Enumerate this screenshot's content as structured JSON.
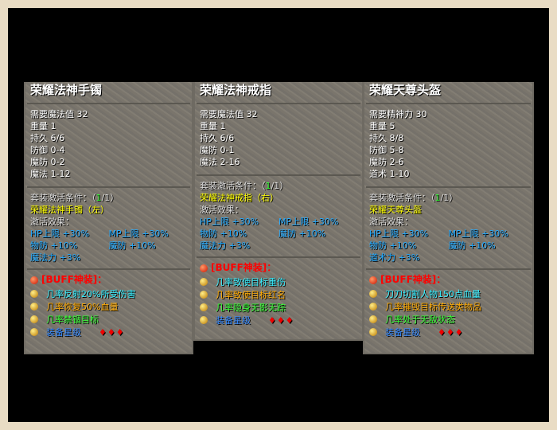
{
  "colors": {
    "title": "#ffffff",
    "set_name": "#ffff00",
    "effects": "#22aaff",
    "buff_header": "#ff0000",
    "buff1": "#33eeff",
    "buff2": "#ffaa00",
    "buff3": "#33ff33",
    "buff4": "#3388ff"
  },
  "panels": [
    {
      "title": "荣耀法神手镯",
      "stats": [
        "需要魔法值 32",
        "重量 1",
        "持久 6/6",
        "防御 0-4",
        "魔防 0-2",
        "魔法 1-12"
      ],
      "set_cond_label": "套装激活条件：（",
      "set_cond_count": "1",
      "set_cond_total": "/1）",
      "set_name": "荣耀法神手镯（左）",
      "effect_label": "激活效果：",
      "effects": [
        "HP上限 +30%",
        "MP上限 +30%",
        "物防 +10%",
        "魔防 +10%",
        "魔法力 +3%"
      ],
      "buff_header": "[BUFF神装]：",
      "buffs": [
        "几率反射20%所受伤害",
        "几率恢复50%血量",
        "几率禁锢目标",
        "装备星级"
      ],
      "stars": "♦♦♦"
    },
    {
      "title": "荣耀法神戒指",
      "stats": [
        "需要魔法值 32",
        "重量 1",
        "持久 6/6",
        "魔防 0-1",
        "魔法 2-16"
      ],
      "set_cond_label": "套装激活条件：（",
      "set_cond_count": "1",
      "set_cond_total": "/1）",
      "set_name": "荣耀法神戒指（右）",
      "effect_label": "激活效果：",
      "effects": [
        "HP上限 +30%",
        "MP上限 +30%",
        "物防 +10%",
        "魔防 +10%",
        "魔法力 +3%"
      ],
      "buff_header": "[BUFF神装]：",
      "buffs": [
        "几率致使目标重伤",
        "几率致使目标红名",
        "几率隐身无影无踪",
        "装备星级"
      ],
      "stars": "♦♦♦"
    },
    {
      "title": "荣耀天尊头盔",
      "stats": [
        "需要精神力 30",
        "重量 5",
        "持久 8/8",
        "防御 5-8",
        "魔防 2-6",
        "道术 1-10"
      ],
      "set_cond_label": "套装激活条件：（",
      "set_cond_count": "1",
      "set_cond_total": "/1）",
      "set_name": "荣耀天尊头盔",
      "effect_label": "激活效果：",
      "effects": [
        "HP上限 +30%",
        "MP上限 +30%",
        "物防 +10%",
        "魔防 +10%",
        "道术力 +3%"
      ],
      "buff_header": "[BUFF神装]：",
      "buffs": [
        "刀刀切割人物150点血量",
        "几率摧毁目标传送类物品",
        "几率处于无敌状态",
        "装备星级"
      ],
      "stars": "♦♦♦"
    }
  ]
}
